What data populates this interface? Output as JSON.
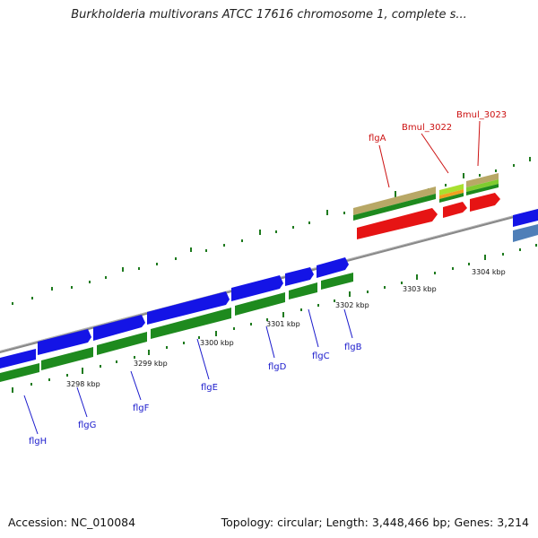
{
  "title": "Burkholderia multivorans ATCC 17616 chromosome 1, complete s...",
  "footer": {
    "accession": "Accession: NC_010084",
    "summary": "Topology: circular; Length: 3,448,466 bp; Genes: 3,214"
  },
  "colors": {
    "forward_gene": "#1414e6",
    "reverse_gene": "#1e8a1e",
    "rna_gene": "#e61414",
    "backbone": "#8c8c8c",
    "tick": "#1e7a1e",
    "blue_label": "#1a1acc",
    "red_label": "#cc1111"
  },
  "kbp_labels": [
    "3298 kbp",
    "3299 kbp",
    "3300 kbp",
    "3301 kbp",
    "3302 kbp",
    "3303 kbp",
    "3304 kbp"
  ],
  "gene_labels": [
    {
      "name": "flgH",
      "color": "blue"
    },
    {
      "name": "flgG",
      "color": "blue"
    },
    {
      "name": "flgF",
      "color": "blue"
    },
    {
      "name": "flgE",
      "color": "blue"
    },
    {
      "name": "flgD",
      "color": "blue"
    },
    {
      "name": "flgC",
      "color": "blue"
    },
    {
      "name": "flgB",
      "color": "blue"
    },
    {
      "name": "flgA",
      "color": "red"
    },
    {
      "name": "Bmul_3022",
      "color": "red"
    },
    {
      "name": "Bmul_3023",
      "color": "red"
    }
  ]
}
